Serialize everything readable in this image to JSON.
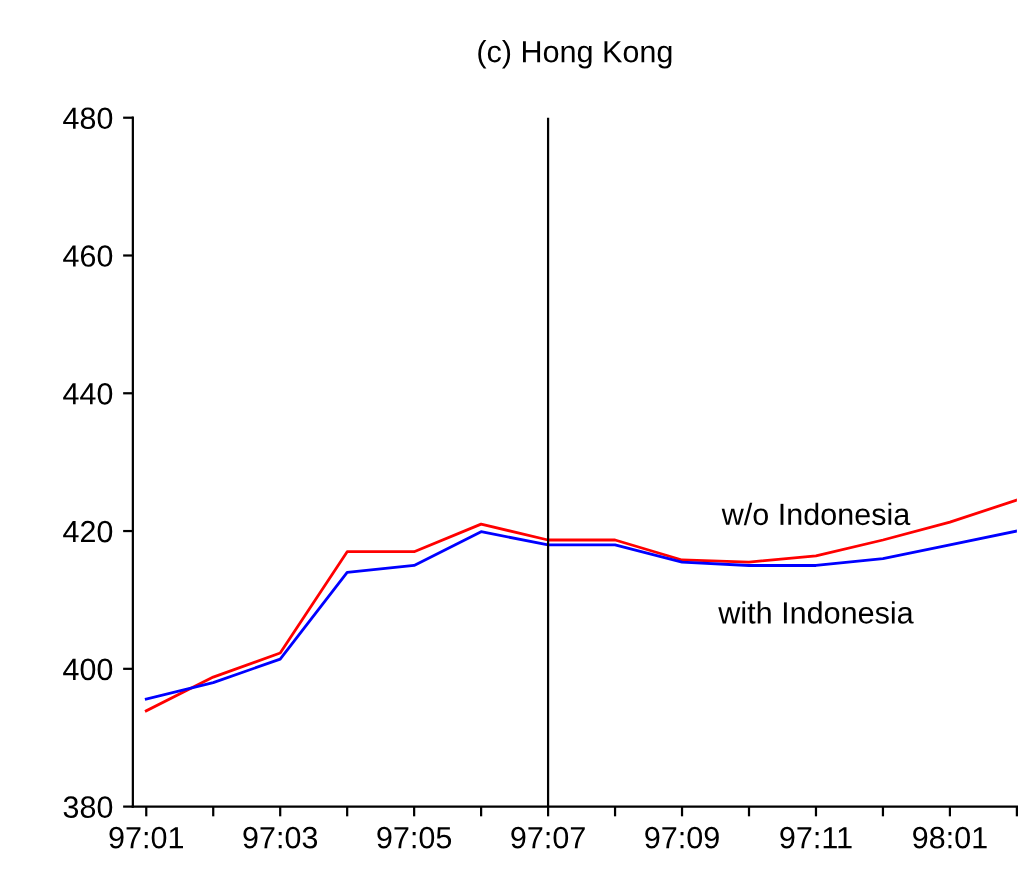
{
  "chart_data": {
    "type": "line",
    "title": "(c) Hong Kong",
    "categories": [
      "97:01",
      null,
      "97:03",
      null,
      "97:05",
      null,
      "97:07",
      null,
      "97:09",
      null,
      "97:11",
      null,
      "98:01",
      null
    ],
    "series": [
      {
        "name": "w/o Indonesia",
        "color": "#ff0000",
        "values": [
          393.9,
          398.8,
          402.3,
          417,
          417,
          421,
          418.7,
          418.7,
          415.8,
          415.5,
          416.4,
          418.7,
          421.3,
          424.5
        ]
      },
      {
        "name": "with Indonesia",
        "color": "#0000ff",
        "values": [
          395.6,
          398,
          401.4,
          414,
          415,
          419.9,
          418,
          418,
          415.5,
          415,
          415,
          416,
          418,
          420
        ]
      }
    ],
    "ylim": [
      380,
      480
    ],
    "yticks": [
      380,
      400,
      420,
      440,
      460,
      480
    ],
    "ref_lines": [
      {
        "axis": "x",
        "value": "97:07",
        "color": "#000000"
      }
    ],
    "grid": false,
    "legend": false,
    "marker": "none",
    "line_style": "solid"
  }
}
